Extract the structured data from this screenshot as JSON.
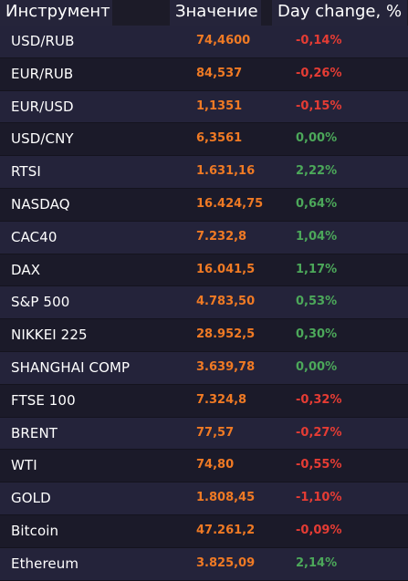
{
  "headers": {
    "instrument": "Инструмент",
    "value": "Значение",
    "change": "Day change, %"
  },
  "colors": {
    "value": "#f07a24",
    "negative": "#e53c34",
    "positive": "#4ca85a"
  },
  "rows": [
    {
      "name": "USD/RUB",
      "value": "74,4600",
      "change": "-0,14%",
      "trend": "neg"
    },
    {
      "name": "EUR/RUB",
      "value": "84,537",
      "change": "-0,26%",
      "trend": "neg"
    },
    {
      "name": "EUR/USD",
      "value": "1,1351",
      "change": "-0,15%",
      "trend": "neg"
    },
    {
      "name": "USD/CNY",
      "value": "6,3561",
      "change": "0,00%",
      "trend": "pos"
    },
    {
      "name": "RTSI",
      "value": "1.631,16",
      "change": "2,22%",
      "trend": "pos"
    },
    {
      "name": "NASDAQ",
      "value": "16.424,75",
      "change": "0,64%",
      "trend": "pos"
    },
    {
      "name": "CAC40",
      "value": "7.232,8",
      "change": "1,04%",
      "trend": "pos"
    },
    {
      "name": "DAX",
      "value": "16.041,5",
      "change": "1,17%",
      "trend": "pos"
    },
    {
      "name": "S&P 500",
      "value": "4.783,50",
      "change": "0,53%",
      "trend": "pos"
    },
    {
      "name": "NIKKEI 225",
      "value": "28.952,5",
      "change": "0,30%",
      "trend": "pos"
    },
    {
      "name": "SHANGHAI COMP",
      "value": "3.639,78",
      "change": "0,00%",
      "trend": "pos"
    },
    {
      "name": "FTSE 100",
      "value": "7.324,8",
      "change": "-0,32%",
      "trend": "neg"
    },
    {
      "name": "BRENT",
      "value": "77,57",
      "change": "-0,27%",
      "trend": "neg"
    },
    {
      "name": "WTI",
      "value": "74,80",
      "change": "-0,55%",
      "trend": "neg"
    },
    {
      "name": "GOLD",
      "value": "1.808,45",
      "change": "-1,10%",
      "trend": "neg"
    },
    {
      "name": "Bitcoin",
      "value": "47.261,2",
      "change": "-0,09%",
      "trend": "neg"
    },
    {
      "name": "Ethereum",
      "value": "3.825,09",
      "change": "2,14%",
      "trend": "pos"
    }
  ]
}
